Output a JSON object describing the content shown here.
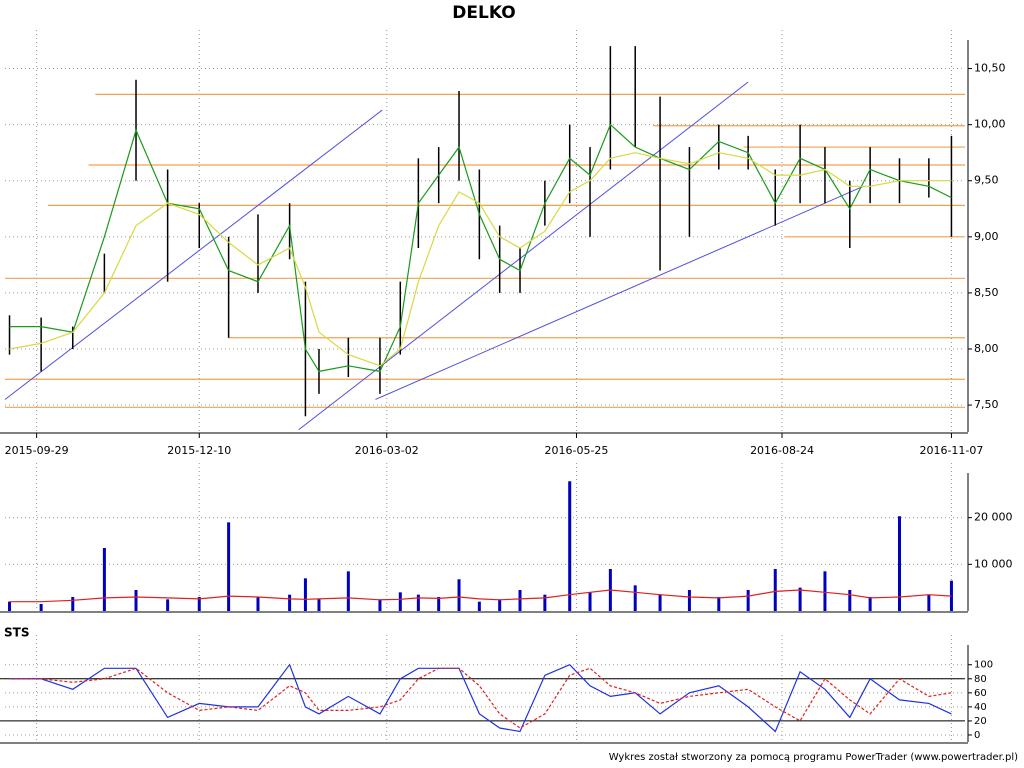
{
  "chart_data": [
    {
      "type": "ohlc",
      "title": "DELKO",
      "x": [
        "2015-09-17",
        "2015-10-01",
        "2015-10-15",
        "2015-10-29",
        "2015-11-12",
        "2015-11-26",
        "2015-12-10",
        "2015-12-23",
        "2016-01-05",
        "2016-01-19",
        "2016-01-26",
        "2016-02-01",
        "2016-02-14",
        "2016-02-28",
        "2016-03-08",
        "2016-03-16",
        "2016-03-25",
        "2016-04-03",
        "2016-04-12",
        "2016-04-21",
        "2016-04-30",
        "2016-05-11",
        "2016-05-22",
        "2016-05-31",
        "2016-06-09",
        "2016-06-20",
        "2016-07-01",
        "2016-07-14",
        "2016-07-27",
        "2016-08-09",
        "2016-08-21",
        "2016-09-01",
        "2016-09-12",
        "2016-09-23",
        "2016-10-02",
        "2016-10-15",
        "2016-10-28",
        "2016-11-07"
      ],
      "high": [
        8.3,
        8.28,
        8.2,
        8.85,
        10.4,
        9.6,
        9.3,
        9.0,
        9.2,
        9.3,
        8.6,
        8.0,
        8.1,
        8.1,
        8.6,
        9.7,
        9.8,
        10.3,
        9.6,
        9.1,
        8.9,
        9.5,
        10.0,
        9.8,
        10.7,
        10.7,
        10.25,
        9.8,
        10.0,
        9.9,
        9.6,
        10.0,
        9.8,
        9.5,
        9.8,
        9.7,
        9.7,
        9.9
      ],
      "low": [
        7.95,
        7.8,
        8.0,
        8.5,
        9.5,
        8.6,
        8.9,
        8.1,
        8.5,
        8.8,
        7.4,
        7.6,
        7.75,
        7.6,
        7.95,
        8.9,
        9.3,
        9.5,
        8.8,
        8.5,
        8.5,
        9.1,
        9.3,
        9.0,
        9.6,
        9.8,
        8.7,
        9.0,
        9.6,
        9.6,
        9.1,
        9.3,
        9.3,
        8.9,
        9.3,
        9.3,
        9.35,
        9.0
      ],
      "bar_color": "#000000",
      "series": [
        {
          "color": "#1a9a1a",
          "values": [
            8.2,
            8.2,
            8.15,
            9.0,
            9.95,
            9.3,
            9.25,
            8.7,
            8.6,
            9.1,
            8.0,
            7.8,
            7.85,
            7.8,
            8.2,
            9.3,
            9.55,
            9.8,
            9.2,
            8.8,
            8.7,
            9.3,
            9.7,
            9.55,
            10.0,
            9.8,
            9.7,
            9.6,
            9.85,
            9.75,
            9.3,
            9.7,
            9.6,
            9.25,
            9.6,
            9.5,
            9.45,
            9.35
          ]
        },
        {
          "color": "#d8d840",
          "values": [
            8.0,
            8.05,
            8.15,
            8.5,
            9.1,
            9.3,
            9.2,
            8.95,
            8.75,
            8.9,
            8.55,
            8.15,
            7.95,
            7.85,
            8.0,
            8.6,
            9.1,
            9.4,
            9.3,
            9.0,
            8.9,
            9.05,
            9.4,
            9.5,
            9.7,
            9.75,
            9.7,
            9.65,
            9.75,
            9.7,
            9.55,
            9.55,
            9.6,
            9.45,
            9.45,
            9.5,
            9.5,
            9.5
          ]
        }
      ],
      "levels_color": "#f5a050",
      "levels": [
        {
          "value": 10.27,
          "from": "2015-10-25"
        },
        {
          "value": 9.99,
          "from": "2016-06-28"
        },
        {
          "value": 9.8,
          "from": "2016-08-07"
        },
        {
          "value": 9.64,
          "from": "2015-10-22"
        },
        {
          "value": 9.28,
          "from": "2015-10-04"
        },
        {
          "value": 9.0,
          "from": "2016-08-25"
        },
        {
          "value": 8.63,
          "from": "2015-09-15"
        },
        {
          "value": 8.1,
          "from": "2015-12-23"
        },
        {
          "value": 7.73,
          "from": "2015-09-15"
        },
        {
          "value": 7.48,
          "from": "2015-09-15"
        }
      ],
      "trend_color": "#5050e0",
      "trendlines": [
        {
          "x": [
            "2015-09-15",
            "2016-02-29"
          ],
          "y": [
            7.55,
            10.13
          ]
        },
        {
          "x": [
            "2016-01-23",
            "2016-08-09"
          ],
          "y": [
            7.28,
            10.38
          ]
        },
        {
          "x": [
            "2016-02-26",
            "2016-09-29"
          ],
          "y": [
            7.55,
            9.45
          ]
        }
      ],
      "xlim": [
        "2015-09-15",
        "2016-11-13"
      ],
      "xticks": [
        "2015-09-29",
        "2015-12-10",
        "2016-03-02",
        "2016-05-25",
        "2016-08-24",
        "2016-11-07"
      ],
      "ylim": [
        7.26,
        10.71
      ],
      "yticks": [
        {
          "value": 7.5,
          "label": "7,50"
        },
        {
          "value": 8,
          "label": "8,00"
        },
        {
          "value": 8.5,
          "label": "8,50"
        },
        {
          "value": 9,
          "label": "9,00"
        },
        {
          "value": 9.5,
          "label": "9,50"
        },
        {
          "value": 10,
          "label": "10,00"
        },
        {
          "value": 10.5,
          "label": "10,50"
        }
      ],
      "grid": true
    },
    {
      "type": "bar",
      "color": "#0000c0",
      "values": [
        2000,
        1500,
        3000,
        13500,
        4500,
        2500,
        3000,
        19000,
        3000,
        3500,
        7000,
        2500,
        8500,
        2500,
        4000,
        3500,
        3000,
        6800,
        2000,
        2500,
        4500,
        3500,
        27800,
        4000,
        9000,
        5500,
        3500,
        4500,
        3000,
        4500,
        9000,
        5000,
        8500,
        4500,
        3000,
        20300,
        3500,
        6500
      ],
      "series": [
        {
          "color": "#e02020",
          "values": [
            2000,
            2000,
            2300,
            2800,
            3000,
            2800,
            2600,
            3200,
            3000,
            2600,
            2500,
            2600,
            2800,
            2400,
            2500,
            2800,
            2700,
            3000,
            2600,
            2400,
            2600,
            2800,
            3500,
            4000,
            4500,
            4000,
            3500,
            3000,
            2800,
            3200,
            4200,
            4500,
            4000,
            3500,
            2800,
            3000,
            3500,
            3200
          ]
        }
      ],
      "ylim": [
        0,
        28500
      ],
      "yticks": [
        {
          "value": 10000,
          "label": "10 000"
        },
        {
          "value": 20000,
          "label": "20 000"
        }
      ],
      "grid": true
    },
    {
      "type": "line",
      "title": "STS",
      "series": [
        {
          "color": "#2030e0",
          "values": [
            80,
            80,
            65,
            95,
            95,
            25,
            45,
            40,
            40,
            100,
            40,
            30,
            55,
            30,
            80,
            95,
            95,
            95,
            30,
            10,
            5,
            85,
            100,
            70,
            55,
            60,
            30,
            60,
            70,
            40,
            5,
            90,
            65,
            25,
            80,
            50,
            45,
            30
          ]
        },
        {
          "color": "#e02020",
          "dashed": true,
          "values": [
            80,
            80,
            75,
            80,
            95,
            60,
            35,
            40,
            35,
            70,
            60,
            35,
            35,
            40,
            50,
            80,
            95,
            95,
            70,
            30,
            10,
            30,
            85,
            95,
            70,
            60,
            45,
            55,
            60,
            65,
            40,
            20,
            80,
            50,
            30,
            80,
            55,
            60
          ]
        }
      ],
      "levels": [
        20,
        80
      ],
      "ylim": [
        -10,
        121
      ],
      "yticks": [
        0,
        20,
        40,
        60,
        80,
        100
      ],
      "grid": true
    }
  ],
  "footer": "Wykres został stworzony za pomocą programu PowerTrader (www.powertrader.pl)"
}
